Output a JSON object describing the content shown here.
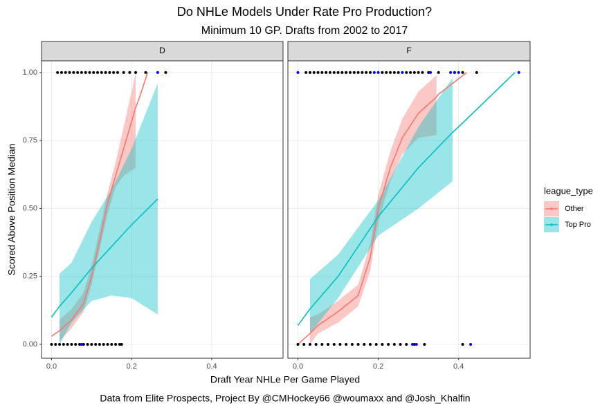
{
  "title": "Do NHLe Models Under Rate Pro Production?",
  "subtitle": "Minimum 10 GP. Drafts from 2002 to 2017",
  "x_label": "Draft Year NHLe Per Game Played",
  "y_label": "Scored Above Position Median",
  "caption": "Data from Elite Prospects, Project By @CMHockey66 @woumaxx and @Josh_Khalfin",
  "legend_title": "league_type",
  "chart_data": [
    {
      "type": "line",
      "title": "D",
      "xlim": [
        -0.025,
        0.578
      ],
      "ylim": [
        -0.051,
        1.043
      ],
      "xticks": [
        {
          "value": 0,
          "label": "0.0"
        },
        {
          "value": 0.2,
          "label": "0.2"
        },
        {
          "value": 0.4,
          "label": "0.4"
        }
      ],
      "yticks": [
        {
          "value": 0,
          "label": "0.00"
        },
        {
          "value": 0.25,
          "label": "0.25"
        },
        {
          "value": 0.5,
          "label": "0.50"
        },
        {
          "value": 0.75,
          "label": "0.75"
        },
        {
          "value": 1,
          "label": "1.00"
        }
      ],
      "grid": true,
      "series": [
        {
          "name": "Other",
          "color": "#F8766D",
          "x": [
            0,
            0.02,
            0.05,
            0.08,
            0.1,
            0.12,
            0.14,
            0.16,
            0.18,
            0.2,
            0.21,
            0.22,
            0.24
          ],
          "values": [
            0.03,
            0.05,
            0.09,
            0.15,
            0.25,
            0.38,
            0.52,
            0.62,
            0.72,
            0.82,
            0.87,
            0.91,
            1.0
          ],
          "lower": [
            null,
            0.01,
            0.06,
            0.12,
            0.22,
            0.35,
            0.48,
            0.58,
            0.62,
            0.64,
            0.65,
            null,
            null
          ],
          "upper": [
            null,
            0.09,
            0.13,
            0.19,
            0.29,
            0.42,
            0.56,
            0.67,
            0.8,
            0.93,
            1.0,
            null,
            null
          ]
        },
        {
          "name": "Top Pro",
          "color": "#00BFC4",
          "x": [
            0,
            0.02,
            0.05,
            0.1,
            0.15,
            0.2,
            0.265
          ],
          "values": [
            0.1,
            0.14,
            0.19,
            0.28,
            0.36,
            0.44,
            0.535
          ],
          "lower": [
            null,
            0.0,
            0.08,
            0.16,
            0.18,
            0.17,
            0.11
          ],
          "upper": [
            null,
            0.26,
            0.3,
            0.45,
            0.57,
            0.72,
            0.96
          ]
        }
      ],
      "points": [
        {
          "color": "#000000",
          "x": [
            0.015,
            0.025,
            0.035,
            0.045,
            0.055,
            0.065,
            0.075,
            0.085,
            0.095,
            0.105,
            0.115,
            0.125,
            0.135,
            0.145,
            0.155,
            0.165,
            0.18,
            0.195,
            0.21,
            0.235,
            0.285
          ],
          "y": [
            1,
            1,
            1,
            1,
            1,
            1,
            1,
            1,
            1,
            1,
            1,
            1,
            1,
            1,
            1,
            1,
            1,
            1,
            1,
            1,
            1
          ]
        },
        {
          "color": "#000000",
          "x": [
            0,
            0.01,
            0.02,
            0.03,
            0.04,
            0.05,
            0.06,
            0.07,
            0.08,
            0.09,
            0.1,
            0.11,
            0.12,
            0.13,
            0.14,
            0.15,
            0.16,
            0.17,
            0.175
          ],
          "y": [
            0,
            0,
            0,
            0,
            0,
            0,
            0,
            0,
            0,
            0,
            0,
            0,
            0,
            0,
            0,
            0,
            0,
            0,
            0
          ]
        },
        {
          "color": "#0000FF",
          "x": [
            0.265,
            0.075
          ],
          "y": [
            1,
            0
          ]
        }
      ]
    },
    {
      "type": "line",
      "title": "F",
      "xlim": [
        -0.025,
        0.578
      ],
      "ylim": [
        -0.051,
        1.043
      ],
      "xticks": [
        {
          "value": 0,
          "label": "0.0"
        },
        {
          "value": 0.2,
          "label": "0.2"
        },
        {
          "value": 0.4,
          "label": "0.4"
        }
      ],
      "yticks": [
        0,
        0.25,
        0.5,
        0.75,
        1
      ],
      "grid": true,
      "series": [
        {
          "name": "Other",
          "color": "#F8766D",
          "x": [
            0,
            0.03,
            0.05,
            0.1,
            0.15,
            0.18,
            0.2,
            0.23,
            0.26,
            0.3,
            0.345,
            0.35,
            0.42
          ],
          "values": [
            0,
            0.04,
            0.07,
            0.12,
            0.18,
            0.32,
            0.5,
            0.65,
            0.76,
            0.85,
            0.91,
            0.92,
            1.0
          ],
          "lower": [
            null,
            0.0,
            0.04,
            0.08,
            0.14,
            0.27,
            0.45,
            0.6,
            0.7,
            0.76,
            0.77,
            null,
            null
          ],
          "upper": [
            null,
            0.1,
            0.11,
            0.16,
            0.22,
            0.37,
            0.55,
            0.71,
            0.83,
            0.93,
            0.99,
            null,
            null
          ]
        },
        {
          "name": "Top Pro",
          "color": "#00BFC4",
          "x": [
            0,
            0.03,
            0.1,
            0.2,
            0.3,
            0.385,
            0.4,
            0.54
          ],
          "values": [
            0.07,
            0.13,
            0.25,
            0.47,
            0.65,
            0.78,
            0.8,
            1.0
          ],
          "lower": [
            null,
            0.04,
            0.17,
            0.4,
            0.5,
            0.6,
            null,
            null
          ],
          "upper": [
            null,
            0.24,
            0.33,
            0.53,
            0.8,
            0.98,
            null,
            null
          ]
        }
      ],
      "points": [
        {
          "color": "#000000",
          "x": [
            0.02,
            0.03,
            0.04,
            0.05,
            0.06,
            0.07,
            0.08,
            0.09,
            0.1,
            0.11,
            0.12,
            0.13,
            0.14,
            0.15,
            0.16,
            0.17,
            0.18,
            0.21,
            0.22,
            0.23,
            0.24,
            0.25,
            0.27,
            0.28,
            0.29,
            0.3,
            0.31,
            0.325,
            0.35,
            0.39,
            0.41,
            0.445
          ],
          "y": [
            1,
            1,
            1,
            1,
            1,
            1,
            1,
            1,
            1,
            1,
            1,
            1,
            1,
            1,
            1,
            1,
            1,
            1,
            1,
            1,
            1,
            1,
            1,
            1,
            1,
            1,
            1,
            1,
            1,
            1,
            1,
            1
          ]
        },
        {
          "color": "#000000",
          "x": [
            0,
            0.015,
            0.03,
            0.045,
            0.06,
            0.075,
            0.09,
            0.105,
            0.12,
            0.135,
            0.15,
            0.165,
            0.18,
            0.195,
            0.21,
            0.225,
            0.24,
            0.255,
            0.27,
            0.29,
            0.315,
            0.41
          ],
          "y": [
            0,
            0,
            0,
            0,
            0,
            0,
            0,
            0,
            0,
            0,
            0,
            0,
            0,
            0,
            0,
            0,
            0,
            0,
            0,
            0,
            0,
            0
          ]
        },
        {
          "color": "#0000FF",
          "x": [
            0,
            0.19,
            0.2,
            0.26,
            0.33,
            0.38,
            0.39,
            0.4,
            0.55,
            0.285,
            0.295,
            0.43
          ],
          "y": [
            1,
            1,
            1,
            1,
            1,
            1,
            1,
            1,
            1,
            0,
            0,
            0
          ]
        }
      ]
    }
  ]
}
